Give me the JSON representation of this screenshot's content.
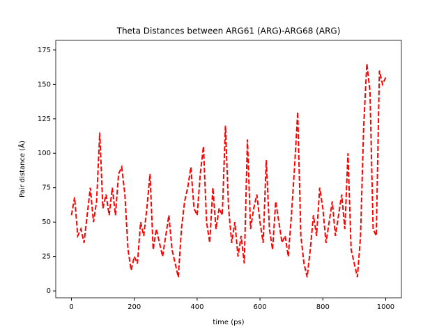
{
  "chart_data": {
    "type": "line",
    "title": "Theta Distances between ARG61 (ARG)-ARG68 (ARG)",
    "x_label": "time (ps)",
    "y_label": "Pair distance (Å)",
    "x": [
      0,
      10,
      20,
      30,
      40,
      50,
      60,
      70,
      80,
      90,
      100,
      110,
      120,
      130,
      140,
      150,
      160,
      170,
      180,
      190,
      200,
      210,
      220,
      230,
      240,
      250,
      260,
      270,
      280,
      290,
      300,
      310,
      320,
      330,
      340,
      350,
      360,
      370,
      380,
      390,
      400,
      410,
      420,
      430,
      440,
      450,
      460,
      470,
      480,
      490,
      500,
      510,
      520,
      530,
      540,
      550,
      560,
      570,
      580,
      590,
      600,
      610,
      620,
      630,
      640,
      650,
      660,
      670,
      680,
      690,
      700,
      710,
      720,
      730,
      740,
      750,
      760,
      770,
      780,
      790,
      800,
      810,
      820,
      830,
      840,
      850,
      860,
      870,
      880,
      890,
      900,
      910,
      920,
      930,
      940,
      950,
      960,
      970,
      980,
      990,
      1000
    ],
    "series": [
      {
        "color": "#ff0000",
        "dashed": true,
        "values": [
          55,
          68,
          40,
          45,
          35,
          55,
          75,
          50,
          65,
          115,
          60,
          70,
          55,
          75,
          55,
          85,
          90,
          70,
          30,
          15,
          25,
          20,
          50,
          40,
          60,
          85,
          30,
          45,
          35,
          25,
          40,
          55,
          30,
          20,
          10,
          45,
          65,
          75,
          90,
          60,
          55,
          85,
          105,
          50,
          35,
          75,
          45,
          60,
          55,
          120,
          60,
          35,
          50,
          25,
          40,
          20,
          110,
          45,
          60,
          70,
          50,
          35,
          95,
          45,
          30,
          65,
          50,
          35,
          40,
          25,
          55,
          90,
          130,
          40,
          20,
          10,
          30,
          55,
          40,
          75,
          60,
          35,
          50,
          65,
          40,
          55,
          70,
          45,
          100,
          30,
          20,
          10,
          40,
          120,
          165,
          145,
          45,
          40,
          160,
          150,
          155
        ]
      }
    ],
    "xlim": [
      -50,
      1050
    ],
    "xticks": [
      0,
      200,
      400,
      600,
      800,
      1000
    ],
    "ylim": [
      -5,
      182
    ],
    "yticks": [
      0,
      25,
      50,
      75,
      100,
      125,
      150,
      175
    ]
  }
}
